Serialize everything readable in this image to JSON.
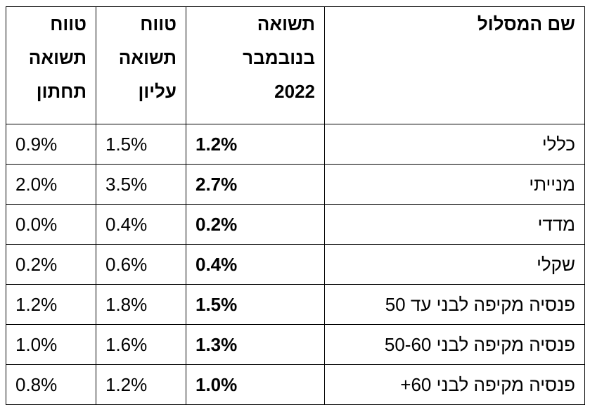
{
  "table": {
    "headers": {
      "name": [
        "שם המסלול"
      ],
      "november": [
        "תשואה",
        "בנובמבר",
        "2022"
      ],
      "upper": [
        "טווח",
        "תשואה",
        "עליון"
      ],
      "lower": [
        "טווח",
        "תשואה",
        "תחתון"
      ]
    },
    "rows": [
      {
        "name": "כללי",
        "november": "1.2%",
        "upper": "1.5%",
        "lower": "0.9%"
      },
      {
        "name": "מנייתי",
        "november": "2.7%",
        "upper": "3.5%",
        "lower": "2.0%"
      },
      {
        "name": "מדדי",
        "november": "0.2%",
        "upper": "0.4%",
        "lower": "0.0%"
      },
      {
        "name": "שקלי",
        "november": "0.4%",
        "upper": "0.6%",
        "lower": "0.2%"
      },
      {
        "name": "פנסיה מקיפה לבני עד 50",
        "november": "1.5%",
        "upper": "1.8%",
        "lower": "1.2%"
      },
      {
        "name": "פנסיה מקיפה לבני 50-60",
        "november": "1.3%",
        "upper": "1.6%",
        "lower": "1.0%"
      },
      {
        "name": "פנסיה מקיפה לבני 60+",
        "november": "1.0%",
        "upper": "1.2%",
        "lower": "0.8%"
      }
    ]
  }
}
